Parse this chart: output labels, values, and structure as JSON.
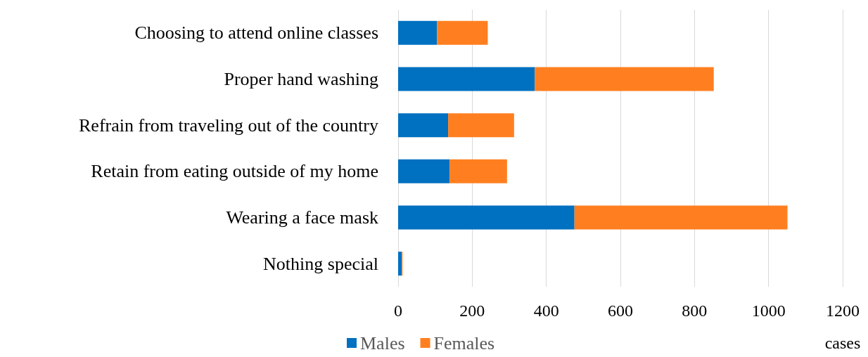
{
  "chart_data": {
    "type": "bar",
    "orientation": "horizontal",
    "stacked": true,
    "categories": [
      "Choosing to attend online classes",
      "Proper hand washing",
      "Refrain from traveling out of the country",
      "Retain from eating outside of my home",
      "Wearing a face mask",
      "Nothing special"
    ],
    "series": [
      {
        "name": "Males",
        "color": "#0070c0",
        "values": [
          105,
          369,
          135,
          139,
          476,
          10
        ]
      },
      {
        "name": "Females",
        "color": "#ff7f20",
        "values": [
          137,
          483,
          178,
          155,
          575,
          2
        ]
      }
    ],
    "xlabel": "cases",
    "xlim": [
      0,
      1200
    ],
    "xticks": [
      0,
      200,
      400,
      600,
      800,
      1000,
      1200
    ],
    "grid": "x",
    "legend": "bottom left"
  }
}
